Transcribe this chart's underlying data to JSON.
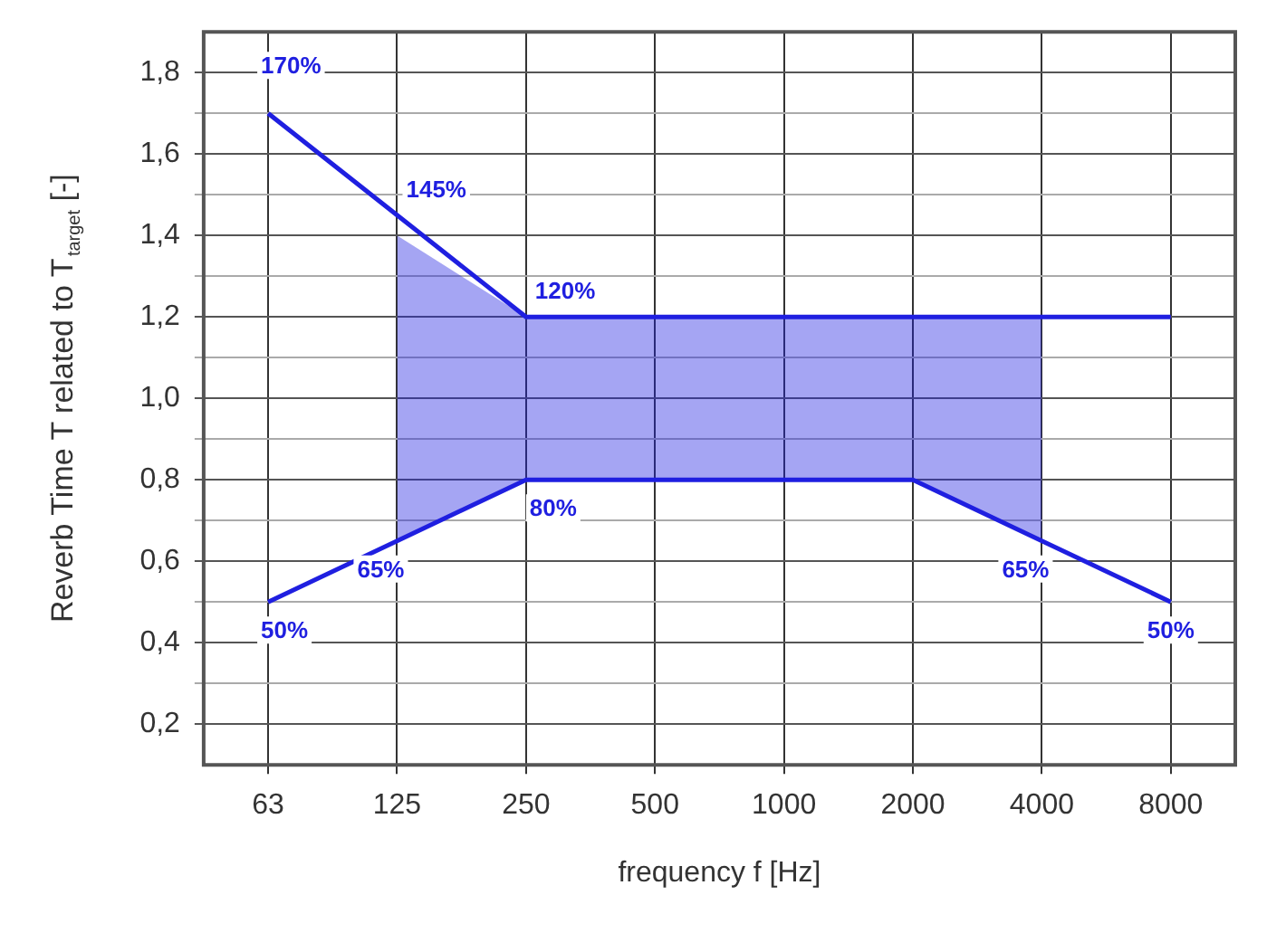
{
  "chart_data": {
    "type": "line",
    "xlabel": "frequency f [Hz]",
    "ylabel": "Reverb Time T related to T$_{target}$ [-]",
    "categories": [
      "63",
      "125",
      "250",
      "500",
      "1000",
      "2000",
      "4000",
      "8000"
    ],
    "series": [
      {
        "color": "#1f1fe0",
        "values": [
          1.7,
          1.45,
          1.2,
          1.2,
          1.2,
          1.2,
          1.2,
          1.2
        ],
        "lower": [
          null,
          0.65,
          0.8,
          0.8,
          0.8,
          0.8,
          0.65,
          null
        ],
        "upper": [
          null,
          1.4,
          1.2,
          1.2,
          1.2,
          1.2,
          1.2,
          null
        ]
      },
      {
        "color": "#1f1fe0",
        "values": [
          0.5,
          0.65,
          0.8,
          0.8,
          0.8,
          0.8,
          0.65,
          0.5
        ]
      }
    ],
    "ylim": [
      0.1,
      1.9
    ],
    "yticks": [
      {
        "value": 0.2,
        "label": "0,2"
      },
      {
        "value": 0.3,
        "label": null
      },
      {
        "value": 0.4,
        "label": "0,4"
      },
      {
        "value": 0.5,
        "label": null
      },
      {
        "value": 0.6,
        "label": "0,6"
      },
      {
        "value": 0.7,
        "label": null
      },
      {
        "value": 0.8,
        "label": "0,8"
      },
      {
        "value": 0.9,
        "label": null
      },
      {
        "value": 1.0,
        "label": "1,0"
      },
      {
        "value": 1.1,
        "label": null
      },
      {
        "value": 1.2,
        "label": "1,2"
      },
      {
        "value": 1.3,
        "label": null
      },
      {
        "value": 1.4,
        "label": "1,4"
      },
      {
        "value": 1.5,
        "label": null
      },
      {
        "value": 1.6,
        "label": "1,6"
      },
      {
        "value": 1.7,
        "label": null
      },
      {
        "value": 1.8,
        "label": "1,8"
      }
    ],
    "grid": true,
    "legend": false,
    "marker": "none",
    "line_style": "solid",
    "annotations": [
      {
        "text": "170%",
        "x": "63",
        "y": 1.7
      },
      {
        "text": "145%",
        "x": "125",
        "y": 1.45
      },
      {
        "text": "120%",
        "x": "250",
        "y": 1.2
      },
      {
        "text": "80%",
        "x": "250",
        "y": 0.8
      },
      {
        "text": "65%",
        "x": "125",
        "y": 0.65
      },
      {
        "text": "50%",
        "x": "63",
        "y": 0.5
      },
      {
        "text": "65%",
        "x": "4000",
        "y": 0.65
      },
      {
        "text": "50%",
        "x": "8000",
        "y": 0.5
      }
    ]
  }
}
